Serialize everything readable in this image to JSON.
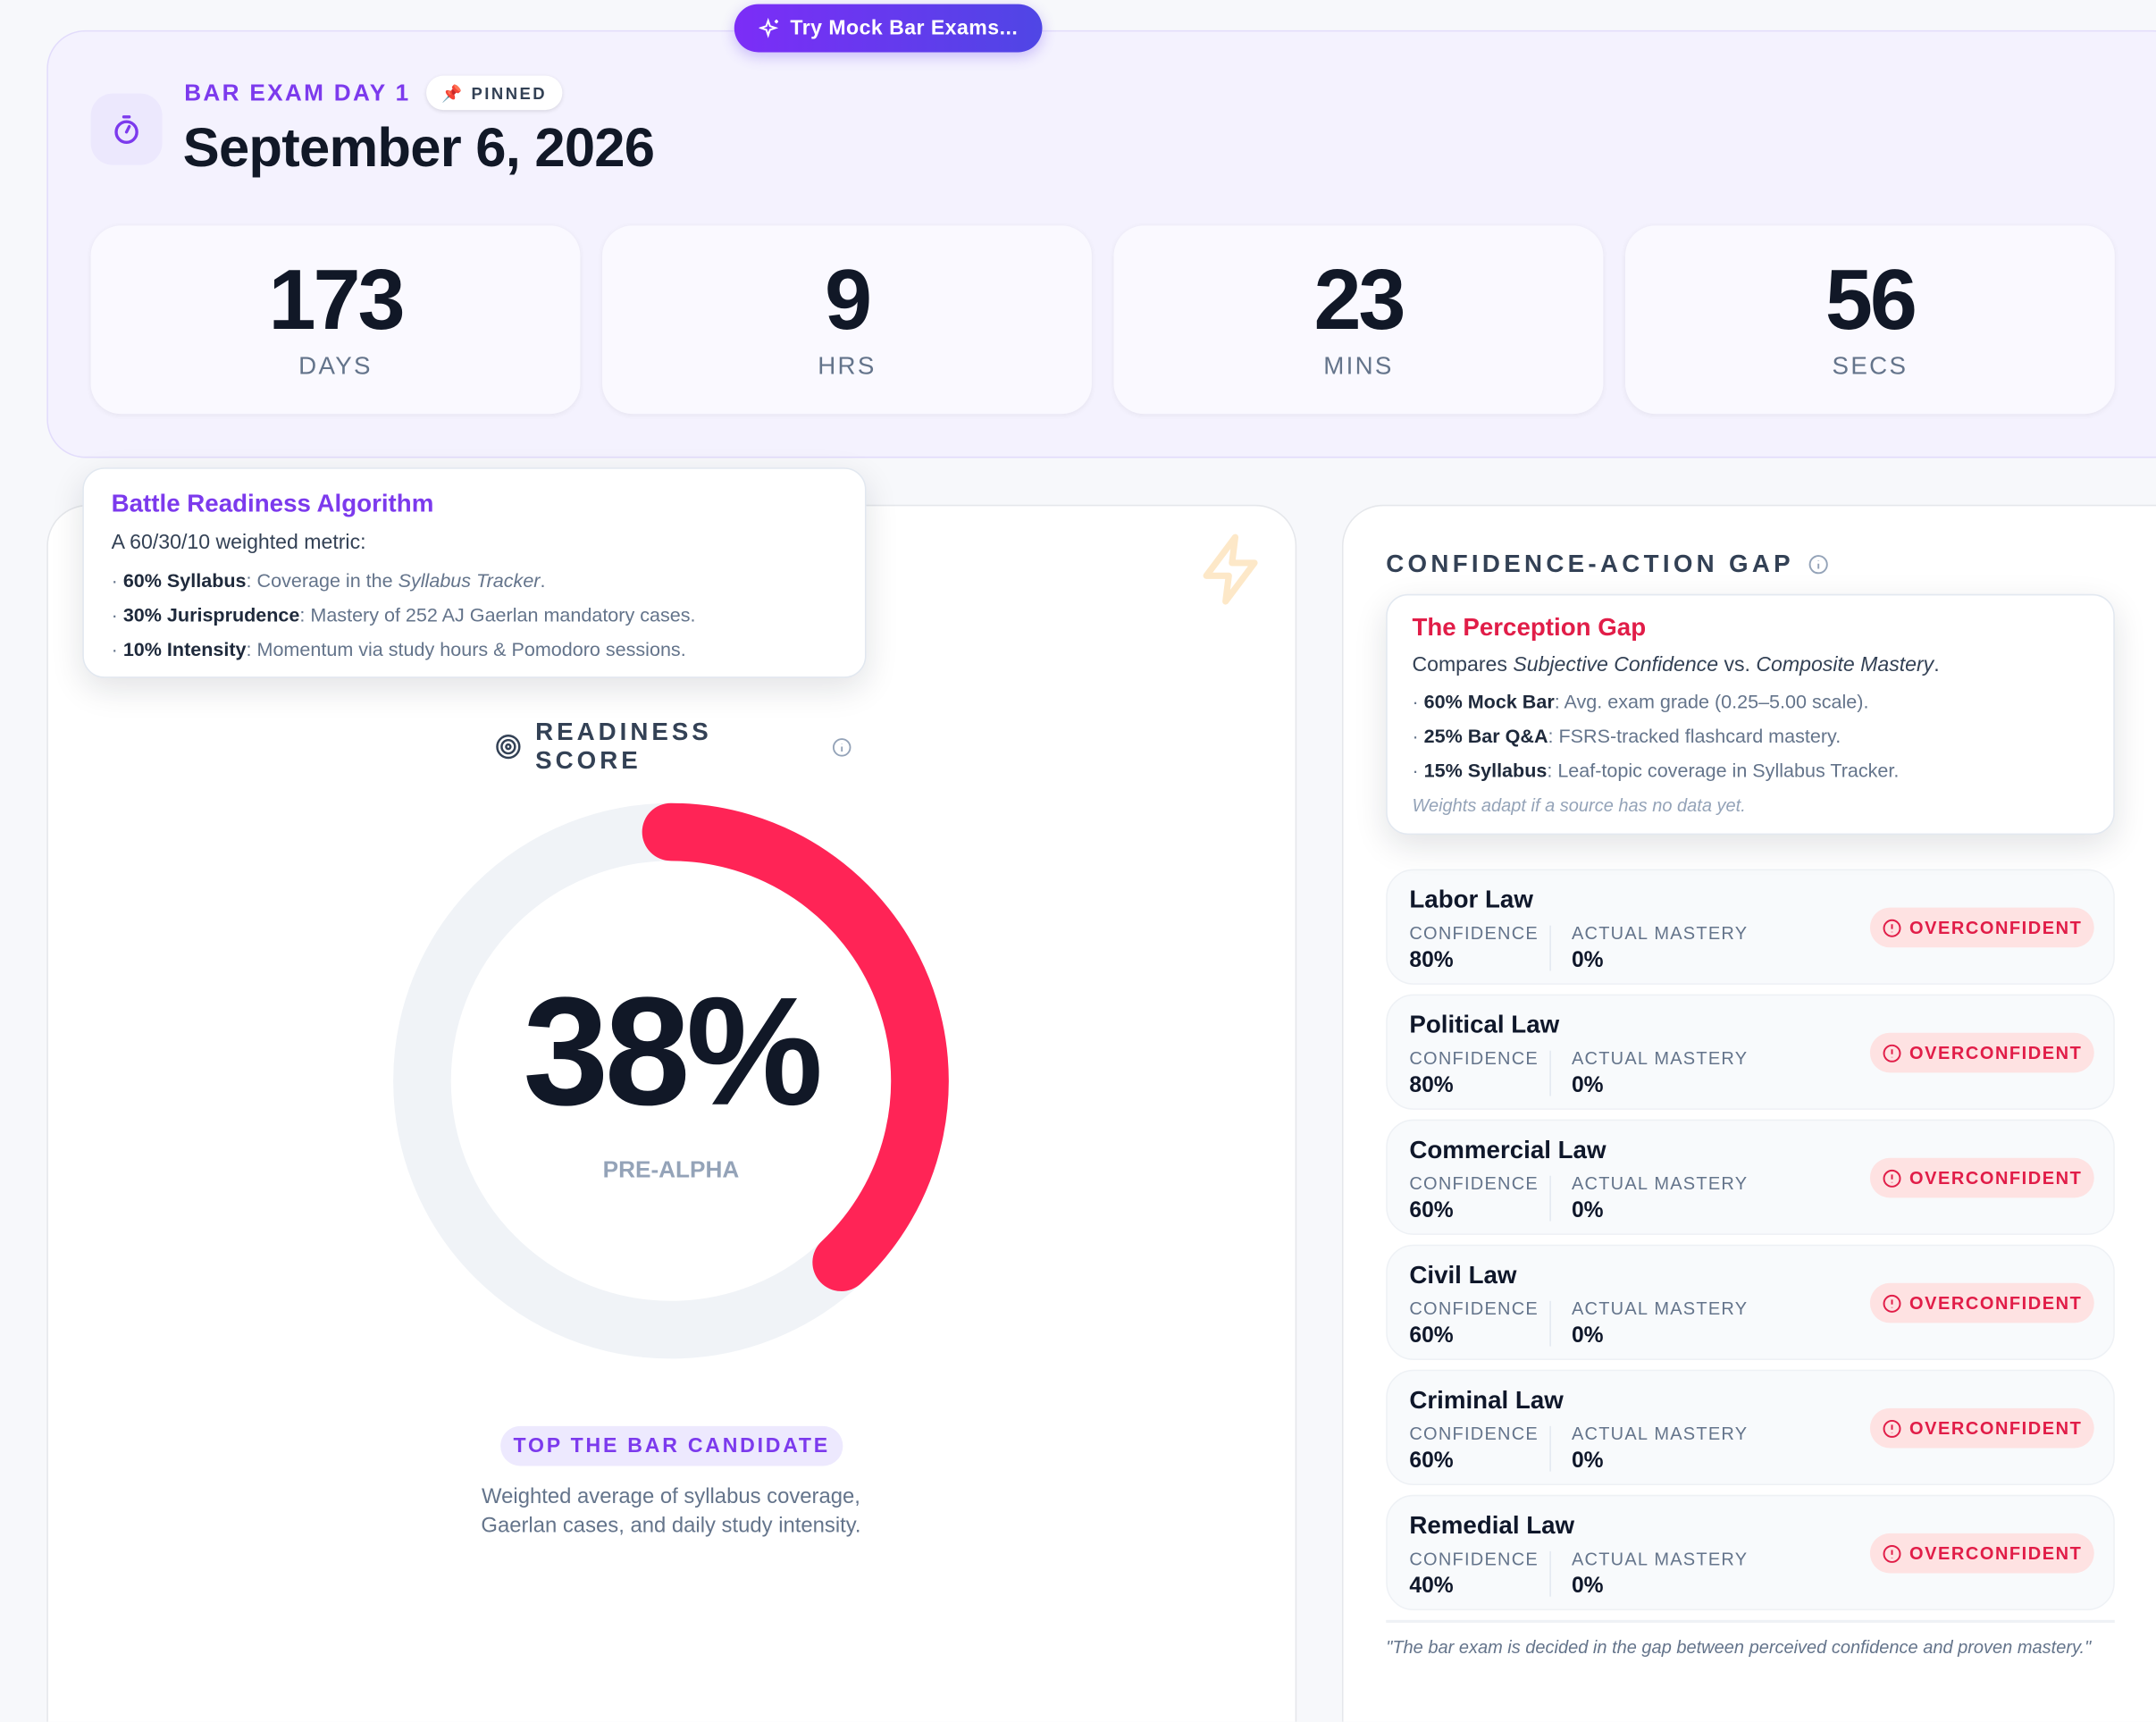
{
  "mock_button": {
    "label": "Try Mock Bar Exams...",
    "icon": "sparkles-icon"
  },
  "header": {
    "exam_label": "BAR EXAM DAY 1",
    "pinned_label": "PINNED",
    "date": "September 6, 2026",
    "icon": "stopwatch-icon"
  },
  "countdown": [
    {
      "value": "173",
      "label": "DAYS"
    },
    {
      "value": "9",
      "label": "HRS"
    },
    {
      "value": "23",
      "label": "MINS"
    },
    {
      "value": "56",
      "label": "SECS"
    }
  ],
  "readiness_tooltip": {
    "title": "Battle Readiness Algorithm",
    "intro": "A 60/30/10 weighted metric:",
    "items": [
      {
        "bold": "60% Syllabus",
        "text": ": Coverage in the ",
        "italic": "Syllabus Tracker",
        "end": "."
      },
      {
        "bold": "30% Jurisprudence",
        "text": ": Mastery of 252 AJ Gaerlan mandatory cases."
      },
      {
        "bold": "10% Intensity",
        "text": ": Momentum via study hours & Pomodoro sessions."
      }
    ]
  },
  "readiness": {
    "label": "READINESS SCORE",
    "score_text": "38%",
    "score_percent": 38,
    "stage": "PRE-ALPHA",
    "candidate_badge": "TOP THE BAR CANDIDATE",
    "description": "Weighted average of syllabus coverage, Gaerlan cases, and daily study intensity.",
    "colors": {
      "arc": "#ff2456",
      "track": "#f0f3f7"
    }
  },
  "gap": {
    "title": "CONFIDENCE-ACTION GAP",
    "confidence_label": "CONFIDENCE",
    "mastery_label": "ACTUAL MASTERY",
    "rows": [
      {
        "subject": "Labor Law",
        "confidence": "80%",
        "mastery": "0%",
        "status": "OVERCONFIDENT"
      },
      {
        "subject": "Political Law",
        "confidence": "80%",
        "mastery": "0%",
        "status": "OVERCONFIDENT"
      },
      {
        "subject": "Commercial Law",
        "confidence": "60%",
        "mastery": "0%",
        "status": "OVERCONFIDENT"
      },
      {
        "subject": "Civil Law",
        "confidence": "60%",
        "mastery": "0%",
        "status": "OVERCONFIDENT"
      },
      {
        "subject": "Criminal Law",
        "confidence": "60%",
        "mastery": "0%",
        "status": "OVERCONFIDENT"
      },
      {
        "subject": "Remedial Law",
        "confidence": "40%",
        "mastery": "0%",
        "status": "OVERCONFIDENT"
      }
    ],
    "quote": "\"The bar exam is decided in the gap between perceived confidence and proven mastery.\""
  },
  "gap_tooltip": {
    "title": "The Perception Gap",
    "intro_pre": "Compares ",
    "intro_i1": "Subjective Confidence",
    "intro_mid": " vs. ",
    "intro_i2": "Composite Mastery",
    "intro_end": ".",
    "items": [
      {
        "bold": "60% Mock Bar",
        "text": ": Avg. exam grade (0.25–5.00 scale)."
      },
      {
        "bold": "25% Bar Q&A",
        "text": ": FSRS-tracked flashcard mastery."
      },
      {
        "bold": "15% Syllabus",
        "text": ": Leaf-topic coverage in Syllabus Tracker."
      }
    ],
    "footnote": "Weights adapt if a source has no data yet."
  }
}
